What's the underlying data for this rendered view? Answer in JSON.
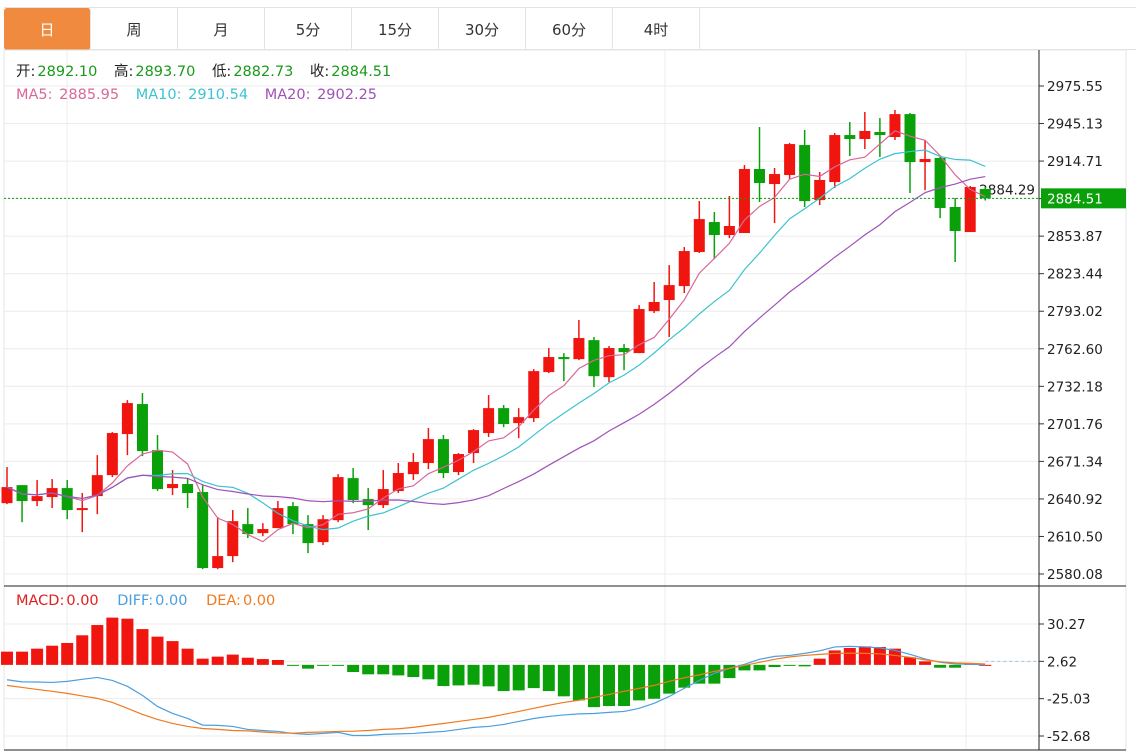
{
  "tabs": [
    {
      "label": "日",
      "active": true
    },
    {
      "label": "周"
    },
    {
      "label": "月"
    },
    {
      "label": "5分"
    },
    {
      "label": "15分"
    },
    {
      "label": "30分"
    },
    {
      "label": "60分"
    },
    {
      "label": "4时"
    }
  ],
  "ohlc": {
    "open_label": "开:",
    "open": "2892.10",
    "high_label": "高:",
    "high": "2893.70",
    "low_label": "低:",
    "low": "2882.73",
    "close_label": "收:",
    "close": "2884.51"
  },
  "ma": {
    "ma5_label": "MA5:",
    "ma5": "2885.95",
    "ma10_label": "MA10:",
    "ma10": "2910.54",
    "ma20_label": "MA20:",
    "ma20": "2902.25"
  },
  "macd": {
    "macd_label": "MACD:",
    "macd": "0.00",
    "diff_label": "DIFF:",
    "diff": "0.00",
    "dea_label": "DEA:",
    "dea": "0.00"
  },
  "colors": {
    "up": "#f0150f",
    "down": "#0aa00a",
    "ma5": "#d9679a",
    "ma10": "#3cc3d0",
    "ma20": "#a052b8",
    "diff": "#4a9fe0",
    "dea": "#f07a20",
    "accent": "#f08a3e"
  },
  "chart_data": {
    "type": "candlestick",
    "price_ticks": [
      "2975.55",
      "2945.13",
      "2914.71",
      "2884.29",
      "2853.87",
      "2823.44",
      "2793.02",
      "2762.60",
      "2732.18",
      "2701.76",
      "2671.34",
      "2640.92",
      "2610.50",
      "2580.08"
    ],
    "price_ylim": [
      2580.08,
      2975.55
    ],
    "last_price": "2884.51",
    "candles": [
      [
        2637.5,
        2666.7,
        2636.7,
        2650.5
      ],
      [
        2652.1,
        2652.1,
        2622.1,
        2639.2
      ],
      [
        2639.2,
        2656.2,
        2635.1,
        2643.2
      ],
      [
        2642.4,
        2657.0,
        2633.5,
        2649.7
      ],
      [
        2649.7,
        2656.2,
        2624.5,
        2631.9
      ],
      [
        2631.9,
        2645.7,
        2614.0,
        2633.5
      ],
      [
        2643.2,
        2676.4,
        2628.6,
        2660.2
      ],
      [
        2660.2,
        2695.1,
        2658.6,
        2694.3
      ],
      [
        2693.5,
        2721.0,
        2676.4,
        2718.6
      ],
      [
        2717.8,
        2726.7,
        2675.6,
        2679.7
      ],
      [
        2680.5,
        2692.7,
        2647.3,
        2648.9
      ],
      [
        2649.7,
        2664.3,
        2644.0,
        2653.0
      ],
      [
        2653.0,
        2657.8,
        2633.5,
        2645.7
      ],
      [
        2646.5,
        2652.1,
        2584.0,
        2584.9
      ],
      [
        2584.9,
        2626.2,
        2584.0,
        2594.6
      ],
      [
        2594.6,
        2631.9,
        2589.7,
        2622.9
      ],
      [
        2620.5,
        2633.5,
        2609.2,
        2612.4
      ],
      [
        2613.2,
        2621.3,
        2610.8,
        2616.5
      ],
      [
        2617.3,
        2639.2,
        2617.3,
        2633.5
      ],
      [
        2635.1,
        2638.4,
        2612.4,
        2620.5
      ],
      [
        2620.5,
        2627.8,
        2597.0,
        2605.1
      ],
      [
        2605.9,
        2627.8,
        2603.5,
        2624.5
      ],
      [
        2623.7,
        2661.0,
        2622.1,
        2658.6
      ],
      [
        2657.8,
        2665.9,
        2637.5,
        2640.0
      ],
      [
        2640.8,
        2649.7,
        2615.7,
        2635.9
      ],
      [
        2635.9,
        2664.3,
        2633.5,
        2648.9
      ],
      [
        2647.3,
        2670.0,
        2645.7,
        2661.9
      ],
      [
        2661.0,
        2678.1,
        2656.2,
        2670.8
      ],
      [
        2670.0,
        2698.4,
        2665.1,
        2689.4
      ],
      [
        2689.4,
        2692.7,
        2657.8,
        2661.9
      ],
      [
        2662.7,
        2678.1,
        2660.2,
        2677.3
      ],
      [
        2678.1,
        2697.5,
        2670.0,
        2696.7
      ],
      [
        2694.3,
        2725.1,
        2691.1,
        2714.5
      ],
      [
        2714.5,
        2717.0,
        2699.1,
        2701.6
      ],
      [
        2702.4,
        2714.5,
        2690.2,
        2707.2
      ],
      [
        2706.4,
        2746.1,
        2703.2,
        2744.5
      ],
      [
        2743.7,
        2763.2,
        2742.9,
        2755.9
      ],
      [
        2755.9,
        2759.1,
        2736.4,
        2754.2
      ],
      [
        2754.2,
        2785.9,
        2753.4,
        2771.3
      ],
      [
        2769.6,
        2772.1,
        2731.5,
        2740.4
      ],
      [
        2739.6,
        2764.8,
        2735.6,
        2763.2
      ],
      [
        2763.2,
        2766.4,
        2745.3,
        2759.9
      ],
      [
        2759.1,
        2798.0,
        2759.1,
        2794.8
      ],
      [
        2793.1,
        2816.7,
        2791.5,
        2800.5
      ],
      [
        2802.1,
        2830.4,
        2772.1,
        2814.2
      ],
      [
        2813.4,
        2845.0,
        2807.8,
        2841.8
      ],
      [
        2841.0,
        2882.3,
        2840.2,
        2867.7
      ],
      [
        2865.3,
        2873.4,
        2835.3,
        2854.8
      ],
      [
        2854.8,
        2886.4,
        2852.3,
        2862.1
      ],
      [
        2856.4,
        2911.5,
        2856.4,
        2908.3
      ],
      [
        2908.3,
        2942.3,
        2881.5,
        2896.9
      ],
      [
        2896.1,
        2909.1,
        2864.5,
        2904.2
      ],
      [
        2903.4,
        2929.4,
        2900.2,
        2928.5
      ],
      [
        2927.7,
        2939.9,
        2877.5,
        2882.3
      ],
      [
        2883.1,
        2905.8,
        2879.1,
        2899.4
      ],
      [
        2897.7,
        2937.4,
        2892.9,
        2935.8
      ],
      [
        2935.8,
        2946.4,
        2918.8,
        2932.6
      ],
      [
        2932.6,
        2954.5,
        2924.5,
        2939.1
      ],
      [
        2938.3,
        2949.6,
        2918.0,
        2935.8
      ],
      [
        2934.2,
        2956.1,
        2931.8,
        2952.8
      ],
      [
        2952.8,
        2953.7,
        2888.8,
        2913.9
      ],
      [
        2913.9,
        2931.8,
        2891.2,
        2916.4
      ],
      [
        2917.2,
        2918.8,
        2868.5,
        2876.7
      ],
      [
        2877.5,
        2884.8,
        2832.9,
        2858.0
      ],
      [
        2857.2,
        2894.5,
        2857.2,
        2893.7
      ],
      [
        2892.1,
        2893.7,
        2882.73,
        2884.51
      ]
    ],
    "candle_fields": [
      "open",
      "high",
      "low",
      "close"
    ],
    "macd_ticks": [
      "30.27",
      "2.62",
      "-25.03",
      "-52.68"
    ],
    "macd_hist": [
      9.8,
      9.8,
      12.0,
      14.2,
      16.2,
      21.9,
      29.5,
      35.0,
      34.2,
      26.5,
      20.9,
      17.6,
      12.0,
      4.6,
      6.1,
      7.6,
      5.3,
      4.3,
      3.6,
      -0.5,
      -2.8,
      -0.5,
      -0.5,
      -5.3,
      -7.0,
      -7.0,
      -7.8,
      -9.0,
      -10.7,
      -15.7,
      -15.2,
      -14.7,
      -15.9,
      -19.4,
      -18.9,
      -17.2,
      -19.4,
      -23.3,
      -26.3,
      -31.3,
      -30.5,
      -30.5,
      -26.3,
      -25.1,
      -21.3,
      -16.9,
      -13.9,
      -13.9,
      -9.8,
      -4.1,
      -4.1,
      -1.6,
      -0.3,
      -1.1,
      4.6,
      10.7,
      12.5,
      13.7,
      13.2,
      12.0,
      5.6,
      2.6,
      -2.1,
      -2.1,
      1.3,
      0.0
    ],
    "diff": [
      -11.0,
      -12.6,
      -12.7,
      -13.0,
      -12.2,
      -10.7,
      -9.3,
      -11.5,
      -15.9,
      -22.6,
      -30.8,
      -36.0,
      -39.7,
      -44.6,
      -44.8,
      -45.6,
      -47.8,
      -48.6,
      -49.3,
      -50.8,
      -51.5,
      -50.8,
      -50.0,
      -52.3,
      -52.3,
      -51.5,
      -51.1,
      -50.8,
      -50.0,
      -49.3,
      -47.8,
      -46.3,
      -45.6,
      -44.1,
      -41.9,
      -39.7,
      -38.2,
      -37.1,
      -36.3,
      -36.0,
      -35.2,
      -34.5,
      -32.2,
      -28.5,
      -23.4,
      -17.4,
      -11.5,
      -6.3,
      -2.6,
      0.4,
      4.1,
      6.3,
      7.0,
      8.5,
      10.4,
      13.3,
      13.7,
      13.3,
      12.6,
      10.7,
      7.8,
      4.4,
      1.9,
      0.7,
      0.4,
      0.1
    ],
    "dea": [
      -15.2,
      -16.7,
      -18.2,
      -19.6,
      -21.1,
      -23.0,
      -24.8,
      -27.8,
      -32.2,
      -36.7,
      -40.4,
      -43.4,
      -45.6,
      -47.1,
      -47.8,
      -48.6,
      -48.9,
      -49.7,
      -50.4,
      -50.6,
      -50.0,
      -49.7,
      -49.3,
      -49.1,
      -48.6,
      -47.8,
      -47.3,
      -46.3,
      -44.8,
      -43.4,
      -41.9,
      -40.4,
      -38.9,
      -36.7,
      -34.5,
      -32.2,
      -29.9,
      -27.8,
      -26.2,
      -24.1,
      -21.9,
      -19.6,
      -17.4,
      -15.2,
      -12.2,
      -9.6,
      -7.4,
      -4.8,
      -2.6,
      -0.4,
      1.9,
      4.1,
      5.9,
      7.0,
      7.8,
      8.5,
      8.7,
      8.5,
      8.2,
      7.0,
      5.6,
      3.7,
      2.2,
      1.5,
      1.1,
      0.7
    ]
  }
}
